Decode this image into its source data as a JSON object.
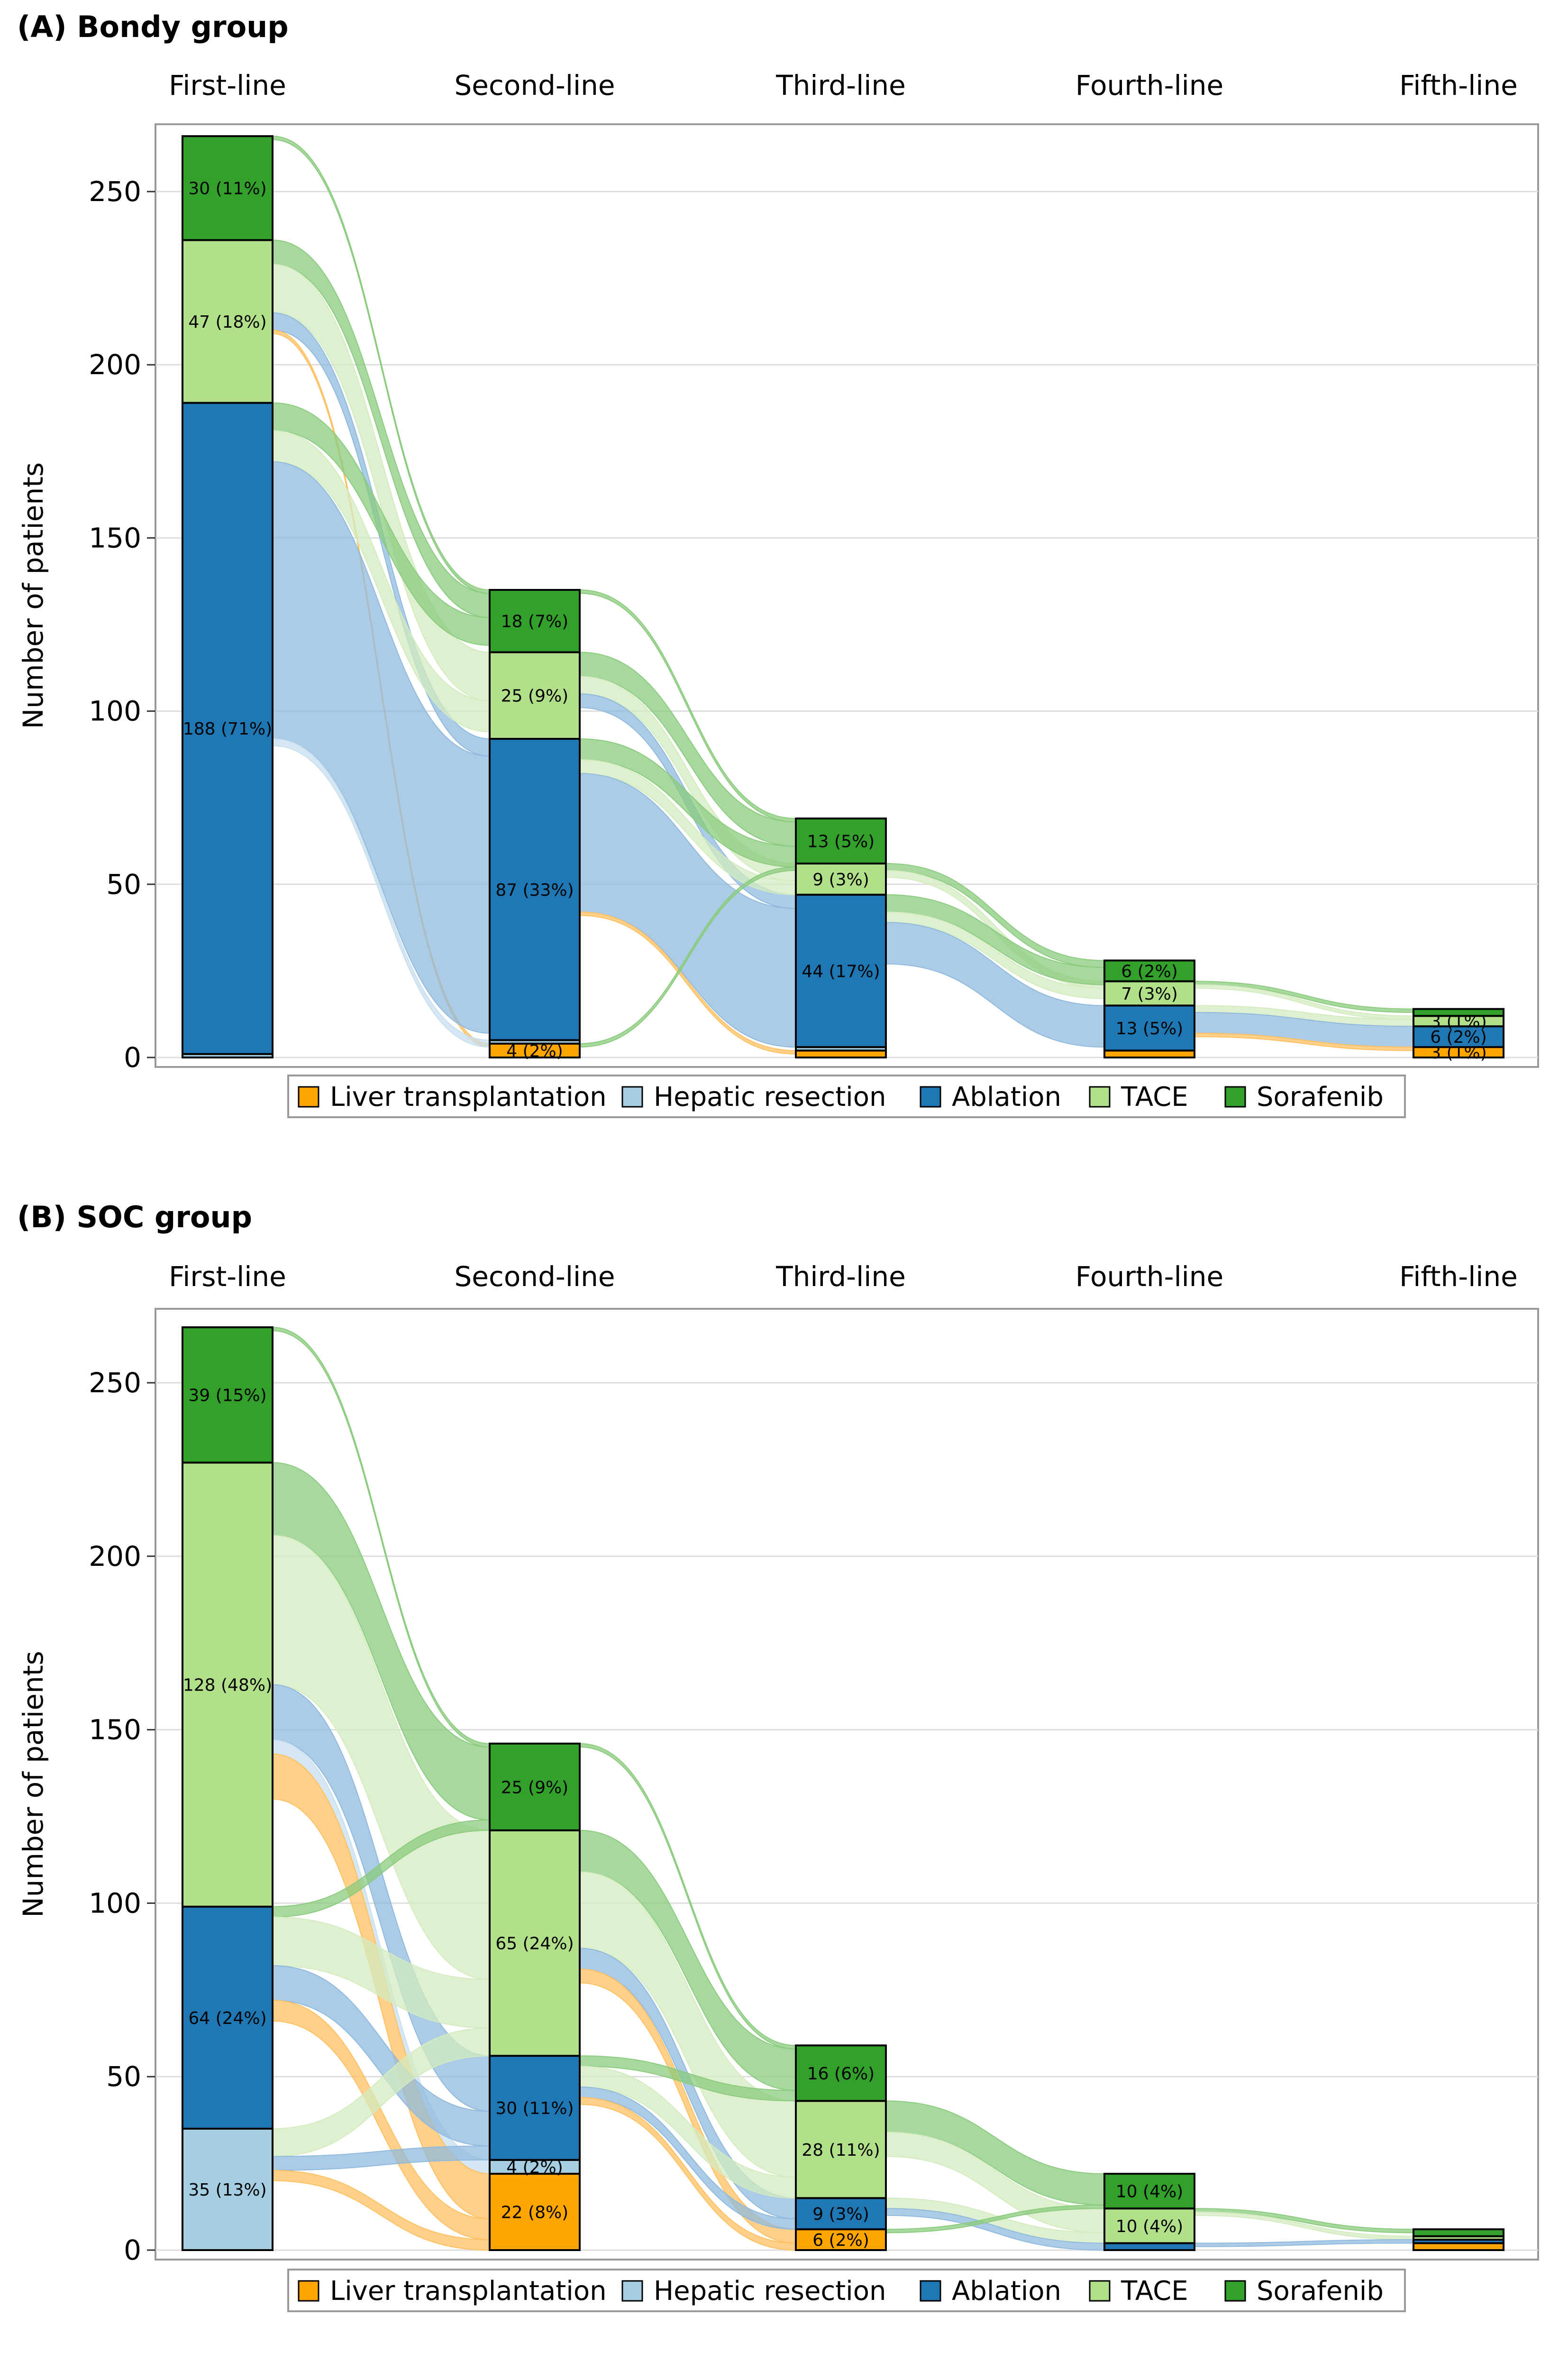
{
  "chart_data": [
    {
      "type": "sankey-stacked-bar",
      "title": "(A) Bondy group",
      "ylabel": "Number of patients",
      "ylim": [
        0,
        270
      ],
      "yticks": [
        0,
        50,
        100,
        150,
        200,
        250
      ],
      "lines": [
        "First-line",
        "Second-line",
        "Third-line",
        "Fourth-line",
        "Fifth-line"
      ],
      "columns": [
        {
          "segments": [
            {
              "cat": "lt",
              "value": 0,
              "label": ""
            },
            {
              "cat": "hr",
              "value": 1,
              "label": ""
            },
            {
              "cat": "ab",
              "value": 188,
              "label": "188 (71%)"
            },
            {
              "cat": "tace",
              "value": 47,
              "label": "47 (18%)"
            },
            {
              "cat": "sor",
              "value": 30,
              "label": "30 (11%)"
            }
          ]
        },
        {
          "segments": [
            {
              "cat": "lt",
              "value": 4,
              "label": "4 (2%)"
            },
            {
              "cat": "hr",
              "value": 1,
              "label": ""
            },
            {
              "cat": "ab",
              "value": 87,
              "label": "87 (33%)"
            },
            {
              "cat": "tace",
              "value": 25,
              "label": "25 (9%)"
            },
            {
              "cat": "sor",
              "value": 18,
              "label": "18 (7%)"
            }
          ]
        },
        {
          "segments": [
            {
              "cat": "lt",
              "value": 2,
              "label": ""
            },
            {
              "cat": "hr",
              "value": 1,
              "label": ""
            },
            {
              "cat": "ab",
              "value": 44,
              "label": "44 (17%)"
            },
            {
              "cat": "tace",
              "value": 9,
              "label": "9 (3%)"
            },
            {
              "cat": "sor",
              "value": 13,
              "label": "13 (5%)"
            }
          ]
        },
        {
          "segments": [
            {
              "cat": "lt",
              "value": 2,
              "label": ""
            },
            {
              "cat": "hr",
              "value": 0,
              "label": ""
            },
            {
              "cat": "ab",
              "value": 13,
              "label": "13 (5%)"
            },
            {
              "cat": "tace",
              "value": 7,
              "label": "7 (3%)"
            },
            {
              "cat": "sor",
              "value": 6,
              "label": "6 (2%)"
            }
          ]
        },
        {
          "segments": [
            {
              "cat": "lt",
              "value": 3,
              "label": "3 (1%)"
            },
            {
              "cat": "hr",
              "value": 0,
              "label": ""
            },
            {
              "cat": "ab",
              "value": 6,
              "label": "6 (2%)"
            },
            {
              "cat": "tace",
              "value": 3,
              "label": "3 (1%)"
            },
            {
              "cat": "sor",
              "value": 2,
              "label": ""
            }
          ]
        }
      ],
      "flows": [
        {
          "from": 0,
          "src": "ab",
          "to": "hr",
          "value": 2
        },
        {
          "from": 0,
          "src": "ab",
          "to": "ab",
          "value": 80
        },
        {
          "from": 0,
          "src": "ab",
          "to": "tace",
          "value": 9
        },
        {
          "from": 0,
          "src": "ab",
          "to": "sor",
          "value": 8
        },
        {
          "from": 0,
          "src": "tace",
          "to": "lt",
          "value": 1
        },
        {
          "from": 0,
          "src": "tace",
          "to": "ab",
          "value": 5
        },
        {
          "from": 0,
          "src": "tace",
          "to": "tace",
          "value": 14
        },
        {
          "from": 0,
          "src": "tace",
          "to": "sor",
          "value": 7
        },
        {
          "from": 0,
          "src": "sor",
          "to": "sor",
          "value": 1
        },
        {
          "from": 1,
          "src": "ab",
          "to": "lt",
          "value": 1
        },
        {
          "from": 1,
          "src": "ab",
          "to": "ab",
          "value": 40
        },
        {
          "from": 1,
          "src": "ab",
          "to": "tace",
          "value": 4
        },
        {
          "from": 1,
          "src": "ab",
          "to": "sor",
          "value": 6
        },
        {
          "from": 1,
          "src": "tace",
          "to": "ab",
          "value": 4
        },
        {
          "from": 1,
          "src": "tace",
          "to": "tace",
          "value": 5
        },
        {
          "from": 1,
          "src": "tace",
          "to": "sor",
          "value": 7
        },
        {
          "from": 1,
          "src": "sor",
          "to": "sor",
          "value": 1
        },
        {
          "from": 1,
          "src": "lt",
          "to": "sor",
          "value": 1
        },
        {
          "from": 2,
          "src": "ab",
          "to": "ab",
          "value": 12
        },
        {
          "from": 2,
          "src": "ab",
          "to": "tace",
          "value": 3
        },
        {
          "from": 2,
          "src": "ab",
          "to": "sor",
          "value": 5
        },
        {
          "from": 2,
          "src": "tace",
          "to": "tace",
          "value": 2
        },
        {
          "from": 2,
          "src": "tace",
          "to": "sor",
          "value": 2
        },
        {
          "from": 3,
          "src": "ab",
          "to": "lt",
          "value": 1
        },
        {
          "from": 3,
          "src": "ab",
          "to": "ab",
          "value": 6
        },
        {
          "from": 3,
          "src": "ab",
          "to": "tace",
          "value": 2
        },
        {
          "from": 3,
          "src": "tace",
          "to": "tace",
          "value": 1
        },
        {
          "from": 3,
          "src": "tace",
          "to": "sor",
          "value": 1
        }
      ],
      "legend": {
        "position": "bottom-center"
      }
    },
    {
      "type": "sankey-stacked-bar",
      "title": "(B) SOC group",
      "ylabel": "Number of patients",
      "ylim": [
        0,
        270
      ],
      "yticks": [
        0,
        50,
        100,
        150,
        200,
        250
      ],
      "lines": [
        "First-line",
        "Second-line",
        "Third-line",
        "Fourth-line",
        "Fifth-line"
      ],
      "columns": [
        {
          "segments": [
            {
              "cat": "lt",
              "value": 0,
              "label": ""
            },
            {
              "cat": "hr",
              "value": 35,
              "label": "35 (13%)"
            },
            {
              "cat": "ab",
              "value": 64,
              "label": "64 (24%)"
            },
            {
              "cat": "tace",
              "value": 128,
              "label": "128 (48%)"
            },
            {
              "cat": "sor",
              "value": 39,
              "label": "39 (15%)"
            }
          ]
        },
        {
          "segments": [
            {
              "cat": "lt",
              "value": 22,
              "label": "22 (8%)"
            },
            {
              "cat": "hr",
              "value": 4,
              "label": "4 (2%)"
            },
            {
              "cat": "ab",
              "value": 30,
              "label": "30 (11%)"
            },
            {
              "cat": "tace",
              "value": 65,
              "label": "65 (24%)"
            },
            {
              "cat": "sor",
              "value": 25,
              "label": "25 (9%)"
            }
          ]
        },
        {
          "segments": [
            {
              "cat": "lt",
              "value": 6,
              "label": "6 (2%)"
            },
            {
              "cat": "hr",
              "value": 0,
              "label": ""
            },
            {
              "cat": "ab",
              "value": 9,
              "label": "9 (3%)"
            },
            {
              "cat": "tace",
              "value": 28,
              "label": "28 (11%)"
            },
            {
              "cat": "sor",
              "value": 16,
              "label": "16 (6%)"
            }
          ]
        },
        {
          "segments": [
            {
              "cat": "lt",
              "value": 0,
              "label": ""
            },
            {
              "cat": "hr",
              "value": 0,
              "label": ""
            },
            {
              "cat": "ab",
              "value": 2,
              "label": ""
            },
            {
              "cat": "tace",
              "value": 10,
              "label": "10 (4%)"
            },
            {
              "cat": "sor",
              "value": 10,
              "label": "10 (4%)"
            }
          ]
        },
        {
          "segments": [
            {
              "cat": "lt",
              "value": 2,
              "label": ""
            },
            {
              "cat": "hr",
              "value": 0,
              "label": ""
            },
            {
              "cat": "ab",
              "value": 1,
              "label": ""
            },
            {
              "cat": "tace",
              "value": 1,
              "label": ""
            },
            {
              "cat": "sor",
              "value": 2,
              "label": ""
            }
          ]
        }
      ],
      "flows": [
        {
          "from": 0,
          "src": "hr",
          "to": "lt",
          "value": 3
        },
        {
          "from": 0,
          "src": "hr",
          "to": "ab",
          "value": 4
        },
        {
          "from": 0,
          "src": "hr",
          "to": "tace",
          "value": 8
        },
        {
          "from": 0,
          "src": "ab",
          "to": "lt",
          "value": 6
        },
        {
          "from": 0,
          "src": "ab",
          "to": "ab",
          "value": 10
        },
        {
          "from": 0,
          "src": "ab",
          "to": "tace",
          "value": 14
        },
        {
          "from": 0,
          "src": "ab",
          "to": "sor",
          "value": 3
        },
        {
          "from": 0,
          "src": "tace",
          "to": "lt",
          "value": 13
        },
        {
          "from": 0,
          "src": "tace",
          "to": "hr",
          "value": 4
        },
        {
          "from": 0,
          "src": "tace",
          "to": "ab",
          "value": 16
        },
        {
          "from": 0,
          "src": "tace",
          "to": "tace",
          "value": 43
        },
        {
          "from": 0,
          "src": "tace",
          "to": "sor",
          "value": 21
        },
        {
          "from": 0,
          "src": "sor",
          "to": "sor",
          "value": 1
        },
        {
          "from": 1,
          "src": "ab",
          "to": "lt",
          "value": 2
        },
        {
          "from": 1,
          "src": "ab",
          "to": "ab",
          "value": 3
        },
        {
          "from": 1,
          "src": "ab",
          "to": "tace",
          "value": 6
        },
        {
          "from": 1,
          "src": "ab",
          "to": "sor",
          "value": 3
        },
        {
          "from": 1,
          "src": "tace",
          "to": "lt",
          "value": 4
        },
        {
          "from": 1,
          "src": "tace",
          "to": "ab",
          "value": 6
        },
        {
          "from": 1,
          "src": "tace",
          "to": "tace",
          "value": 22
        },
        {
          "from": 1,
          "src": "tace",
          "to": "sor",
          "value": 12
        },
        {
          "from": 1,
          "src": "sor",
          "to": "sor",
          "value": 1
        },
        {
          "from": 2,
          "src": "ab",
          "to": "ab",
          "value": 2
        },
        {
          "from": 2,
          "src": "ab",
          "to": "tace",
          "value": 3
        },
        {
          "from": 2,
          "src": "tace",
          "to": "tace",
          "value": 7
        },
        {
          "from": 2,
          "src": "tace",
          "to": "sor",
          "value": 9
        },
        {
          "from": 2,
          "src": "lt",
          "to": "sor",
          "value": 1
        },
        {
          "from": 3,
          "src": "ab",
          "to": "ab",
          "value": 1
        },
        {
          "from": 3,
          "src": "tace",
          "to": "tace",
          "value": 1
        },
        {
          "from": 3,
          "src": "tace",
          "to": "sor",
          "value": 1
        }
      ],
      "legend": {
        "position": "bottom-center"
      }
    }
  ],
  "legend_items": [
    {
      "cat": "lt",
      "label": "Liver transplantation"
    },
    {
      "cat": "hr",
      "label": "Hepatic resection"
    },
    {
      "cat": "ab",
      "label": "Ablation"
    },
    {
      "cat": "tace",
      "label": "TACE"
    },
    {
      "cat": "sor",
      "label": "Sorafenib"
    }
  ],
  "colors": {
    "lt": "#FFA500",
    "hr": "#A6CEE3",
    "ab": "#1F78B4",
    "tace": "#B2DF8A",
    "sor": "#33A02C",
    "flow_lt": "#FFC061",
    "flow_hr": "#C7DFEE",
    "flow_ab": "#8FB9DD",
    "flow_tace": "#D3EBBF",
    "flow_sor": "#8ACB7E",
    "grid": "#DDDDDD",
    "frame": "#999999"
  }
}
